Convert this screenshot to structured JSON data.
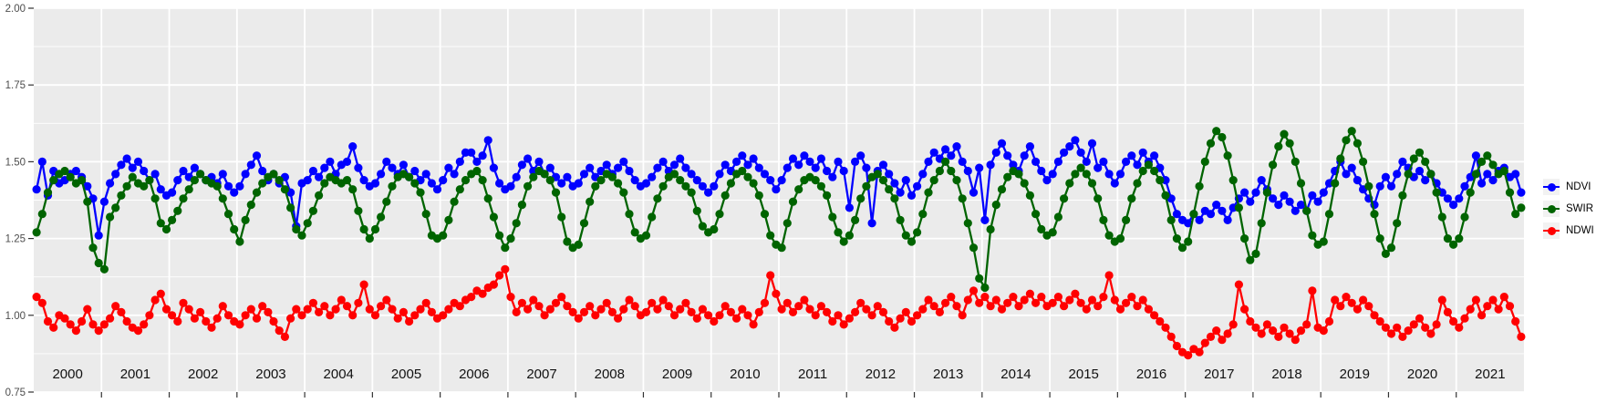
{
  "y_axis": {
    "tick_labels": [
      "0.75",
      "1.00",
      "1.25",
      "1.50",
      "1.75",
      "2.00"
    ],
    "tick_values": [
      0.75,
      1.0,
      1.25,
      1.5,
      1.75,
      2.0
    ],
    "label_color": "#4d4d4d"
  },
  "x_axis": {
    "year_labels": [
      "2000",
      "2001",
      "2002",
      "2003",
      "2004",
      "2005",
      "2006",
      "2007",
      "2008",
      "2009",
      "2010",
      "2011",
      "2012",
      "2013",
      "2014",
      "2015",
      "2016",
      "2017",
      "2018",
      "2019",
      "2020",
      "2021"
    ],
    "label_color": "#111111"
  },
  "legend": {
    "items": [
      {
        "label": "NDVI",
        "color": "#0000ff"
      },
      {
        "label": "SWIR",
        "color": "#006400"
      },
      {
        "label": "NDWI",
        "color": "#ff0000"
      }
    ]
  },
  "panel": {
    "background": "#ebebeb",
    "gridline_color": "#ffffff"
  },
  "chart_data": {
    "type": "line",
    "title": "",
    "xlabel": "",
    "ylabel": "",
    "x_description": "Monthly time series, Jan 2000 - Dec 2021, one point per month",
    "x_years": [
      2000,
      2001,
      2002,
      2003,
      2004,
      2005,
      2006,
      2007,
      2008,
      2009,
      2010,
      2011,
      2012,
      2013,
      2014,
      2015,
      2016,
      2017,
      2018,
      2019,
      2020,
      2021
    ],
    "points_per_year": 12,
    "ylim": [
      0.75,
      2.0
    ],
    "y_ticks": [
      0.75,
      1.0,
      1.25,
      1.5,
      1.75,
      2.0
    ],
    "grid": true,
    "legend_position": "right",
    "series": [
      {
        "name": "NDVI",
        "color": "#0000ff",
        "values": [
          1.41,
          1.5,
          1.39,
          1.47,
          1.43,
          1.44,
          1.46,
          1.47,
          1.45,
          1.42,
          1.38,
          1.26,
          1.37,
          1.43,
          1.46,
          1.49,
          1.51,
          1.48,
          1.5,
          1.47,
          1.44,
          1.46,
          1.41,
          1.39,
          1.4,
          1.44,
          1.47,
          1.45,
          1.48,
          1.46,
          1.44,
          1.45,
          1.43,
          1.46,
          1.42,
          1.4,
          1.42,
          1.46,
          1.49,
          1.52,
          1.47,
          1.44,
          1.46,
          1.43,
          1.45,
          1.4,
          1.29,
          1.43,
          1.44,
          1.47,
          1.45,
          1.48,
          1.5,
          1.46,
          1.49,
          1.5,
          1.55,
          1.48,
          1.44,
          1.42,
          1.43,
          1.46,
          1.5,
          1.48,
          1.46,
          1.49,
          1.45,
          1.47,
          1.44,
          1.46,
          1.43,
          1.41,
          1.44,
          1.48,
          1.46,
          1.5,
          1.53,
          1.53,
          1.5,
          1.52,
          1.57,
          1.48,
          1.43,
          1.41,
          1.42,
          1.45,
          1.49,
          1.51,
          1.47,
          1.5,
          1.46,
          1.48,
          1.45,
          1.43,
          1.45,
          1.42,
          1.43,
          1.46,
          1.48,
          1.45,
          1.47,
          1.49,
          1.46,
          1.48,
          1.5,
          1.47,
          1.44,
          1.42,
          1.43,
          1.45,
          1.48,
          1.5,
          1.47,
          1.49,
          1.51,
          1.48,
          1.46,
          1.44,
          1.42,
          1.4,
          1.42,
          1.46,
          1.49,
          1.47,
          1.5,
          1.52,
          1.49,
          1.51,
          1.48,
          1.46,
          1.44,
          1.41,
          1.44,
          1.48,
          1.51,
          1.49,
          1.52,
          1.5,
          1.48,
          1.51,
          1.47,
          1.45,
          1.5,
          1.47,
          1.35,
          1.5,
          1.52,
          1.48,
          1.3,
          1.47,
          1.49,
          1.46,
          1.43,
          1.4,
          1.44,
          1.39,
          1.42,
          1.46,
          1.5,
          1.53,
          1.51,
          1.54,
          1.52,
          1.55,
          1.5,
          1.47,
          1.4,
          1.48,
          1.31,
          1.49,
          1.53,
          1.56,
          1.52,
          1.49,
          1.47,
          1.52,
          1.55,
          1.5,
          1.47,
          1.44,
          1.46,
          1.5,
          1.53,
          1.55,
          1.57,
          1.53,
          1.5,
          1.56,
          1.48,
          1.5,
          1.46,
          1.43,
          1.46,
          1.5,
          1.52,
          1.49,
          1.53,
          1.5,
          1.52,
          1.48,
          1.44,
          1.38,
          1.33,
          1.31,
          1.3,
          1.33,
          1.31,
          1.34,
          1.33,
          1.36,
          1.34,
          1.31,
          1.35,
          1.38,
          1.4,
          1.37,
          1.4,
          1.44,
          1.41,
          1.38,
          1.36,
          1.39,
          1.37,
          1.34,
          1.36,
          1.34,
          1.39,
          1.37,
          1.4,
          1.43,
          1.47,
          1.5,
          1.46,
          1.48,
          1.44,
          1.41,
          1.38,
          1.36,
          1.42,
          1.45,
          1.42,
          1.46,
          1.5,
          1.48,
          1.45,
          1.47,
          1.44,
          1.46,
          1.43,
          1.4,
          1.38,
          1.36,
          1.38,
          1.42,
          1.45,
          1.52,
          1.43,
          1.46,
          1.44,
          1.47,
          1.48,
          1.45,
          1.46,
          1.4
        ]
      },
      {
        "name": "SWIR",
        "color": "#006400",
        "values": [
          1.27,
          1.33,
          1.4,
          1.44,
          1.46,
          1.47,
          1.45,
          1.43,
          1.44,
          1.37,
          1.22,
          1.17,
          1.15,
          1.32,
          1.35,
          1.39,
          1.42,
          1.45,
          1.43,
          1.42,
          1.44,
          1.38,
          1.3,
          1.28,
          1.31,
          1.34,
          1.38,
          1.41,
          1.44,
          1.46,
          1.44,
          1.43,
          1.42,
          1.38,
          1.33,
          1.28,
          1.24,
          1.31,
          1.36,
          1.4,
          1.43,
          1.45,
          1.46,
          1.44,
          1.41,
          1.35,
          1.28,
          1.26,
          1.3,
          1.34,
          1.39,
          1.43,
          1.45,
          1.44,
          1.43,
          1.44,
          1.41,
          1.34,
          1.28,
          1.25,
          1.28,
          1.32,
          1.37,
          1.42,
          1.45,
          1.46,
          1.45,
          1.43,
          1.4,
          1.33,
          1.26,
          1.25,
          1.26,
          1.31,
          1.37,
          1.41,
          1.44,
          1.46,
          1.47,
          1.44,
          1.38,
          1.32,
          1.26,
          1.22,
          1.25,
          1.3,
          1.36,
          1.42,
          1.45,
          1.47,
          1.46,
          1.44,
          1.4,
          1.32,
          1.24,
          1.22,
          1.23,
          1.3,
          1.37,
          1.42,
          1.44,
          1.46,
          1.45,
          1.43,
          1.4,
          1.33,
          1.27,
          1.25,
          1.26,
          1.32,
          1.38,
          1.42,
          1.45,
          1.46,
          1.44,
          1.42,
          1.4,
          1.34,
          1.29,
          1.27,
          1.28,
          1.33,
          1.39,
          1.43,
          1.46,
          1.47,
          1.45,
          1.43,
          1.39,
          1.33,
          1.26,
          1.23,
          1.22,
          1.3,
          1.37,
          1.41,
          1.44,
          1.45,
          1.44,
          1.42,
          1.39,
          1.32,
          1.27,
          1.24,
          1.26,
          1.31,
          1.38,
          1.42,
          1.45,
          1.46,
          1.44,
          1.41,
          1.38,
          1.31,
          1.26,
          1.24,
          1.27,
          1.33,
          1.4,
          1.44,
          1.47,
          1.5,
          1.47,
          1.44,
          1.38,
          1.3,
          1.22,
          1.12,
          1.09,
          1.28,
          1.36,
          1.41,
          1.45,
          1.47,
          1.46,
          1.43,
          1.39,
          1.33,
          1.28,
          1.26,
          1.27,
          1.32,
          1.38,
          1.43,
          1.46,
          1.48,
          1.46,
          1.43,
          1.38,
          1.31,
          1.26,
          1.24,
          1.25,
          1.31,
          1.38,
          1.43,
          1.47,
          1.49,
          1.47,
          1.44,
          1.39,
          1.31,
          1.25,
          1.22,
          1.24,
          1.33,
          1.42,
          1.5,
          1.56,
          1.6,
          1.58,
          1.52,
          1.44,
          1.35,
          1.25,
          1.18,
          1.2,
          1.3,
          1.4,
          1.49,
          1.55,
          1.59,
          1.56,
          1.5,
          1.43,
          1.34,
          1.26,
          1.23,
          1.24,
          1.33,
          1.43,
          1.51,
          1.57,
          1.6,
          1.56,
          1.5,
          1.42,
          1.33,
          1.25,
          1.2,
          1.22,
          1.3,
          1.39,
          1.46,
          1.51,
          1.53,
          1.5,
          1.46,
          1.4,
          1.32,
          1.25,
          1.23,
          1.25,
          1.32,
          1.4,
          1.46,
          1.5,
          1.52,
          1.49,
          1.46,
          1.47,
          1.4,
          1.33,
          1.35
        ]
      },
      {
        "name": "NDWI",
        "color": "#ff0000",
        "values": [
          1.06,
          1.04,
          0.98,
          0.96,
          1.0,
          0.99,
          0.97,
          0.95,
          0.98,
          1.02,
          0.97,
          0.95,
          0.97,
          0.99,
          1.03,
          1.01,
          0.98,
          0.96,
          0.95,
          0.97,
          1.0,
          1.05,
          1.07,
          1.02,
          1.0,
          0.98,
          1.04,
          1.02,
          0.99,
          1.01,
          0.98,
          0.96,
          0.99,
          1.03,
          1.0,
          0.98,
          0.97,
          1.0,
          1.02,
          0.99,
          1.03,
          1.01,
          0.98,
          0.95,
          0.93,
          0.99,
          1.02,
          1.0,
          1.02,
          1.04,
          1.01,
          1.03,
          1.0,
          1.02,
          1.05,
          1.03,
          1.0,
          1.04,
          1.1,
          1.02,
          1.0,
          1.03,
          1.05,
          1.02,
          0.99,
          1.01,
          0.98,
          1.0,
          1.02,
          1.04,
          1.01,
          0.99,
          1.0,
          1.02,
          1.04,
          1.03,
          1.05,
          1.06,
          1.08,
          1.07,
          1.09,
          1.1,
          1.13,
          1.15,
          1.06,
          1.01,
          1.04,
          1.02,
          1.05,
          1.03,
          1.0,
          1.02,
          1.04,
          1.06,
          1.03,
          1.01,
          0.99,
          1.01,
          1.03,
          1.0,
          1.02,
          1.04,
          1.01,
          0.99,
          1.02,
          1.05,
          1.03,
          1.0,
          1.01,
          1.04,
          1.02,
          1.05,
          1.03,
          1.0,
          1.02,
          1.04,
          1.01,
          0.99,
          1.02,
          1.0,
          0.98,
          1.0,
          1.03,
          1.01,
          0.99,
          1.02,
          1.0,
          0.97,
          1.01,
          1.04,
          1.13,
          1.07,
          1.02,
          1.04,
          1.01,
          1.03,
          1.05,
          1.02,
          1.0,
          1.03,
          1.01,
          0.98,
          1.0,
          0.97,
          0.99,
          1.01,
          1.04,
          1.02,
          1.0,
          1.03,
          1.01,
          0.98,
          0.96,
          0.99,
          1.01,
          0.98,
          1.0,
          1.02,
          1.05,
          1.03,
          1.01,
          1.04,
          1.06,
          1.03,
          1.0,
          1.05,
          1.08,
          1.04,
          1.06,
          1.03,
          1.05,
          1.02,
          1.04,
          1.06,
          1.03,
          1.05,
          1.07,
          1.04,
          1.06,
          1.03,
          1.04,
          1.06,
          1.03,
          1.05,
          1.07,
          1.04,
          1.02,
          1.05,
          1.03,
          1.06,
          1.13,
          1.05,
          1.02,
          1.04,
          1.06,
          1.03,
          1.05,
          1.02,
          1.0,
          0.98,
          0.96,
          0.93,
          0.9,
          0.88,
          0.87,
          0.89,
          0.88,
          0.91,
          0.93,
          0.95,
          0.92,
          0.94,
          0.97,
          1.1,
          1.02,
          0.98,
          0.96,
          0.94,
          0.97,
          0.95,
          0.93,
          0.96,
          0.94,
          0.92,
          0.95,
          0.97,
          1.08,
          0.96,
          0.95,
          0.98,
          1.05,
          1.03,
          1.06,
          1.04,
          1.02,
          1.05,
          1.03,
          1.0,
          0.98,
          0.96,
          0.94,
          0.96,
          0.93,
          0.95,
          0.97,
          0.99,
          0.96,
          0.94,
          0.97,
          1.05,
          1.01,
          0.98,
          0.96,
          0.99,
          1.02,
          1.05,
          1.0,
          1.03,
          1.05,
          1.02,
          1.06,
          1.03,
          0.98,
          0.93
        ]
      }
    ]
  }
}
